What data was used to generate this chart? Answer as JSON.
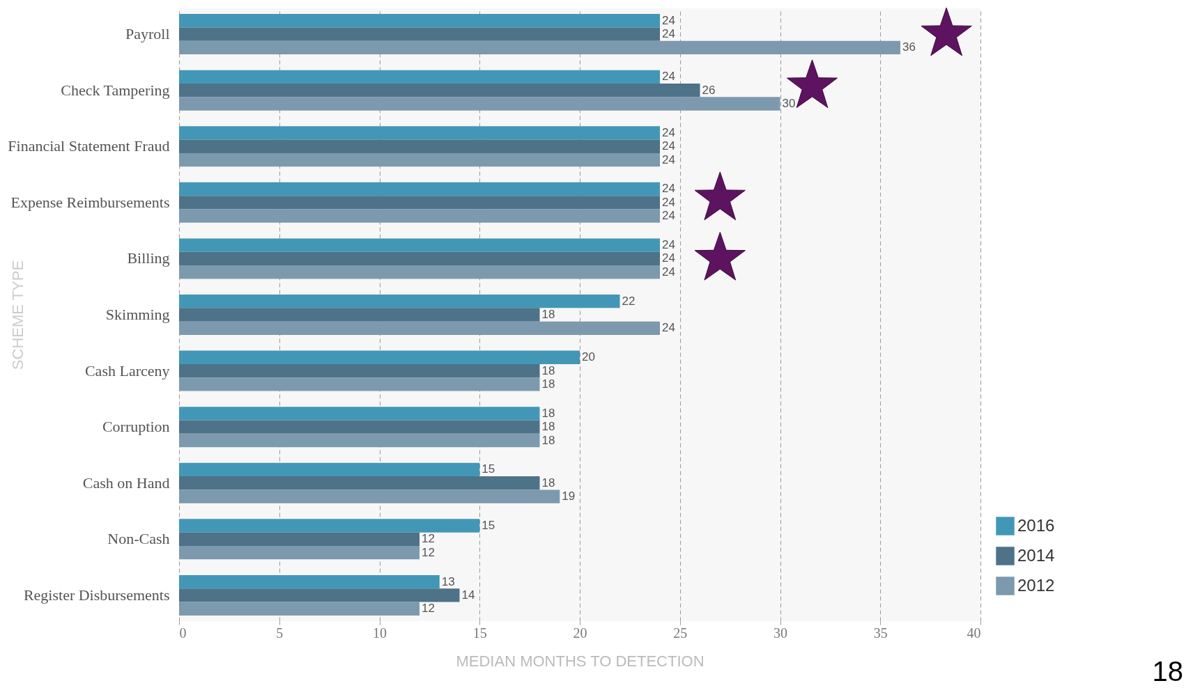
{
  "chart_data": {
    "type": "bar",
    "orientation": "horizontal",
    "xlabel": "MEDIAN MONTHS TO DETECTION",
    "ylabel": "SCHEME TYPE",
    "categories": [
      "Payroll",
      "Check Tampering",
      "Financial Statement Fraud",
      "Expense Reimbursements",
      "Billing",
      "Skimming",
      "Cash Larceny",
      "Corruption",
      "Cash on Hand",
      "Non-Cash",
      "Register Disbursements"
    ],
    "series": [
      {
        "name": "2016",
        "color": "#4397b6",
        "values": [
          24,
          24,
          24,
          24,
          24,
          22,
          20,
          18,
          15,
          15,
          13
        ]
      },
      {
        "name": "2014",
        "color": "#4e7288",
        "values": [
          24,
          26,
          24,
          24,
          24,
          18,
          18,
          18,
          18,
          12,
          14
        ]
      },
      {
        "name": "2012",
        "color": "#7d99ad",
        "values": [
          36,
          30,
          24,
          24,
          24,
          24,
          18,
          18,
          19,
          12,
          12
        ]
      }
    ],
    "xlim": [
      0,
      40
    ],
    "xticks": [
      0,
      5,
      10,
      15,
      20,
      25,
      30,
      35,
      40
    ],
    "grid": "x",
    "legend": "bottom right",
    "data_labels": true,
    "annotations": [
      "18"
    ]
  }
}
